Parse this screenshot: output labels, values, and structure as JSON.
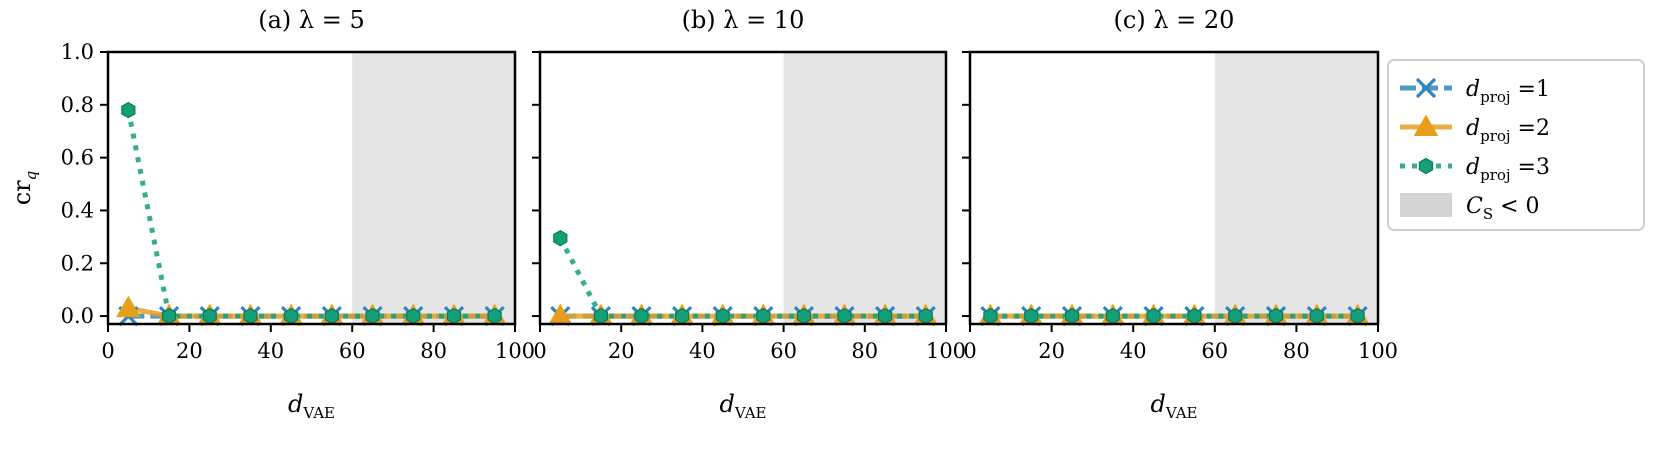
{
  "colors": {
    "series1": "#2e86c1",
    "series2": "#e69f1d",
    "series3": "#13a079",
    "shade": "#d4d4d4"
  },
  "legend": {
    "entries": [
      {
        "prefix": "d",
        "sub": "proj",
        "suffix": " =1",
        "series": 0
      },
      {
        "prefix": "d",
        "sub": "proj",
        "suffix": " =2",
        "series": 1
      },
      {
        "prefix": "d",
        "sub": "proj",
        "suffix": " =3",
        "series": 2
      }
    ],
    "region": {
      "prefix": "C",
      "sub": "S",
      "suffix": " < 0"
    }
  },
  "chart_data": [
    {
      "type": "line",
      "title": "(a) λ = 5",
      "xlabel": {
        "main": "d",
        "sub": "VAE"
      },
      "ylabel": {
        "main": "cr",
        "sub": "q"
      },
      "xlim": [
        0,
        100
      ],
      "ylim": [
        -0.03,
        1.0
      ],
      "xticks": [
        0,
        20,
        40,
        60,
        80,
        100
      ],
      "yticks": [
        0.0,
        0.2,
        0.4,
        0.6,
        0.8,
        1.0
      ],
      "ytick_labels": [
        "0.0",
        "0.2",
        "0.4",
        "0.6",
        "0.8",
        "1.0"
      ],
      "shaded_region": [
        60,
        100
      ],
      "x": [
        5,
        15,
        25,
        35,
        45,
        55,
        65,
        75,
        85,
        95
      ],
      "series": [
        {
          "values": [
            0.0,
            0.0,
            0.0,
            0.0,
            0.0,
            0.0,
            0.0,
            0.0,
            0.0,
            0.0
          ]
        },
        {
          "values": [
            0.03,
            0.0,
            0.0,
            0.0,
            0.0,
            0.0,
            0.0,
            0.0,
            0.0,
            0.0
          ]
        },
        {
          "values": [
            0.78,
            0.0,
            0.0,
            0.0,
            0.0,
            0.0,
            0.0,
            0.0,
            0.0,
            0.0
          ]
        }
      ]
    },
    {
      "type": "line",
      "title": "(b) λ = 10",
      "xlabel": {
        "main": "d",
        "sub": "VAE"
      },
      "xlim": [
        0,
        100
      ],
      "ylim": [
        -0.03,
        1.0
      ],
      "xticks": [
        0,
        20,
        40,
        60,
        80,
        100
      ],
      "yticks": [
        0.0,
        0.2,
        0.4,
        0.6,
        0.8,
        1.0
      ],
      "shaded_region": [
        60,
        100
      ],
      "x": [
        5,
        15,
        25,
        35,
        45,
        55,
        65,
        75,
        85,
        95
      ],
      "series": [
        {
          "values": [
            0.0,
            0.0,
            0.0,
            0.0,
            0.0,
            0.0,
            0.0,
            0.0,
            0.0,
            0.0
          ]
        },
        {
          "values": [
            0.0,
            0.0,
            0.0,
            0.0,
            0.0,
            0.0,
            0.0,
            0.0,
            0.0,
            0.0
          ]
        },
        {
          "values": [
            0.295,
            0.0,
            0.0,
            0.0,
            0.0,
            0.0,
            0.0,
            0.0,
            0.0,
            0.0
          ]
        }
      ]
    },
    {
      "type": "line",
      "title": "(c) λ = 20",
      "xlabel": {
        "main": "d",
        "sub": "VAE"
      },
      "xlim": [
        0,
        100
      ],
      "ylim": [
        -0.03,
        1.0
      ],
      "xticks": [
        0,
        20,
        40,
        60,
        80,
        100
      ],
      "yticks": [
        0.0,
        0.2,
        0.4,
        0.6,
        0.8,
        1.0
      ],
      "shaded_region": [
        60,
        100
      ],
      "x": [
        5,
        15,
        25,
        35,
        45,
        55,
        65,
        75,
        85,
        95
      ],
      "series": [
        {
          "values": [
            0.0,
            0.0,
            0.0,
            0.0,
            0.0,
            0.0,
            0.0,
            0.0,
            0.0,
            0.0
          ]
        },
        {
          "values": [
            0.0,
            0.0,
            0.0,
            0.0,
            0.0,
            0.0,
            0.0,
            0.0,
            0.0,
            0.0
          ]
        },
        {
          "values": [
            0.0,
            0.0,
            0.0,
            0.0,
            0.0,
            0.0,
            0.0,
            0.0,
            0.0,
            0.0
          ]
        }
      ]
    }
  ]
}
